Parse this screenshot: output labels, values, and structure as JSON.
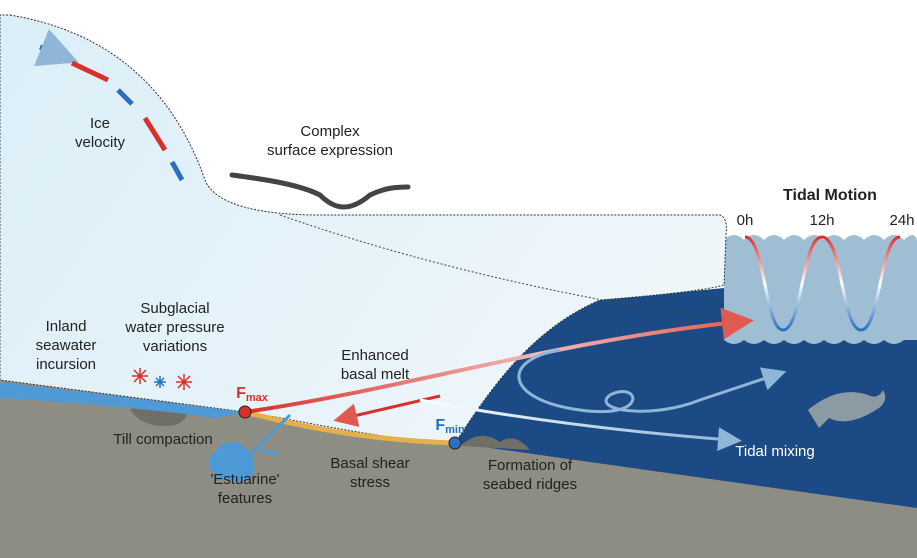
{
  "labels": {
    "ice_velocity": [
      "Ice",
      "velocity"
    ],
    "surface_expression": [
      "Complex",
      "surface expression"
    ],
    "tidal_motion": {
      "title": "Tidal Motion",
      "times": [
        "0h",
        "12h",
        "24h"
      ]
    },
    "inland_incursion": [
      "Inland",
      "seawater",
      "incursion"
    ],
    "water_pressure": [
      "Subglacial",
      "water pressure",
      "variations"
    ],
    "basal_melt": [
      "Enhanced",
      "basal melt"
    ],
    "f_max": {
      "letter": "F",
      "subscript": "max"
    },
    "f_min": {
      "letter": "F",
      "subscript": "min"
    },
    "till_compaction": [
      "Till compaction"
    ],
    "estuarine": [
      "'Estuarine'",
      "features"
    ],
    "basal_shear": [
      "Basal shear",
      "stress"
    ],
    "seabed_ridges": [
      "Formation of",
      "seabed ridges"
    ],
    "tidal_mixing": [
      "Tidal mixing"
    ]
  }
}
